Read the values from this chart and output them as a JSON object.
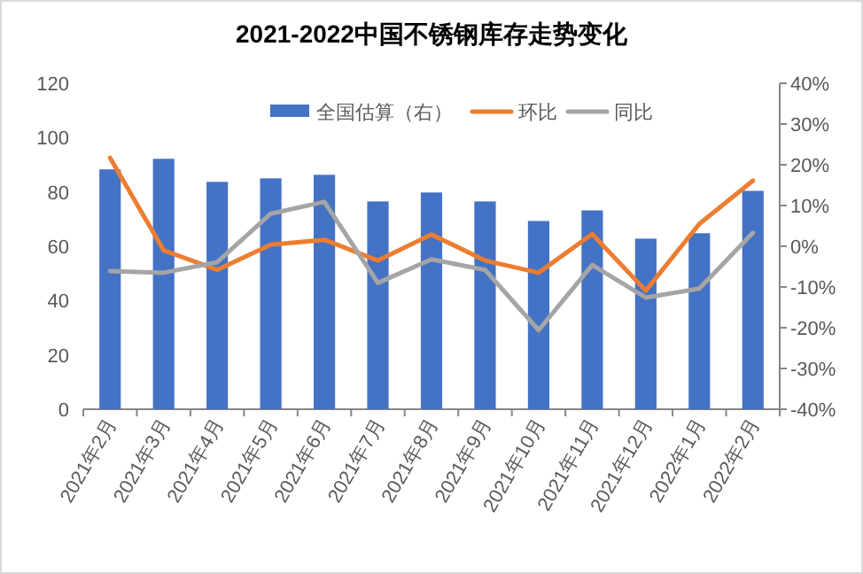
{
  "chart_data": {
    "type": "bar",
    "title": "2021-2022中国不锈钢库存走势变化",
    "categories": [
      "2021年2月",
      "2021年3月",
      "2021年4月",
      "2021年5月",
      "2021年6月",
      "2021年7月",
      "2021年8月",
      "2021年9月",
      "2021年10月",
      "2021年11月",
      "2021年12月",
      "2022年1月",
      "2022年2月"
    ],
    "series": [
      {
        "name": "全国估算（右）",
        "color": "#4472c4",
        "values": [
          88.3,
          92.2,
          83.7,
          85,
          86.3,
          76.5,
          79.8,
          76.5,
          69.3,
          73.2,
          62.8,
          64.8,
          80.4
        ]
      },
      {
        "name": "环比",
        "type": "line",
        "axis": "y2",
        "color": "#ed7d31",
        "values": [
          21.7,
          -1,
          -5.8,
          0.4,
          1.6,
          -3.5,
          2.9,
          -3.5,
          -6.5,
          3,
          -10.9,
          5.5,
          16.1
        ]
      },
      {
        "name": "同比",
        "type": "line",
        "axis": "y2",
        "color": "#a5a5a5",
        "values": [
          -6.1,
          -6.5,
          -3.9,
          8,
          10.9,
          -9,
          -3.2,
          -5.8,
          -20.6,
          -4.6,
          -12.6,
          -10.4,
          3.3
        ]
      }
    ],
    "ylim": [
      0,
      120
    ],
    "yticks": [
      0,
      20,
      40,
      60,
      80,
      100,
      120
    ],
    "y2lim": [
      -40,
      40
    ],
    "y2ticks": [
      {
        "value": -40,
        "label": "-40%"
      },
      {
        "value": -30,
        "label": "-30%"
      },
      {
        "value": -20,
        "label": "-20%"
      },
      {
        "value": -10,
        "label": "-10%"
      },
      {
        "value": 0,
        "label": "0%"
      },
      {
        "value": 10,
        "label": "10%"
      },
      {
        "value": 20,
        "label": "20%"
      },
      {
        "value": 30,
        "label": "30%"
      },
      {
        "value": 40,
        "label": "40%"
      }
    ],
    "legend": "top",
    "grid": false,
    "marker": "none",
    "line_style": "solid"
  }
}
